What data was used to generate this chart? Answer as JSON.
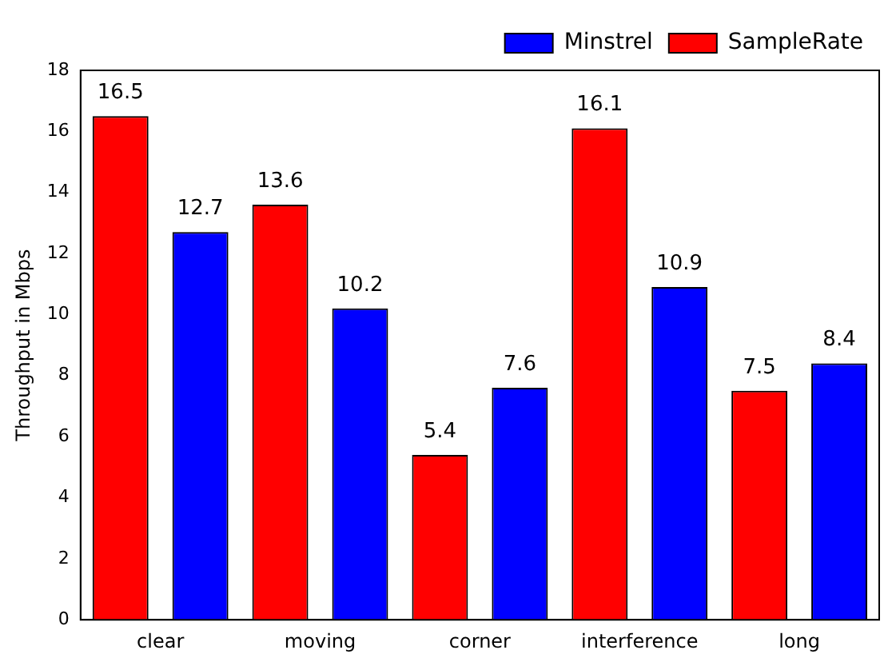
{
  "chart_data": {
    "type": "bar",
    "ylabel": "Throughput in Mbps",
    "categories": [
      "clear",
      "moving",
      "corner",
      "interference",
      "long"
    ],
    "series": [
      {
        "name": "SampleRate",
        "color": "#ff0000",
        "values": [
          16.5,
          13.6,
          5.4,
          16.1,
          7.5
        ]
      },
      {
        "name": "Minstrel",
        "color": "#0000ff",
        "values": [
          12.7,
          10.2,
          7.6,
          10.9,
          8.4
        ]
      }
    ],
    "ylim": [
      0,
      18
    ],
    "yticks": [
      0,
      2,
      4,
      6,
      8,
      10,
      12,
      14,
      16,
      18
    ],
    "grid": false,
    "legend": "top right",
    "data_labels": true
  }
}
